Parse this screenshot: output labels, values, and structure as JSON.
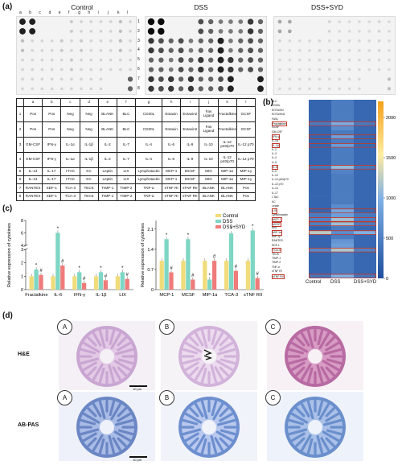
{
  "panel_labels": {
    "a": "(a)",
    "b": "(b)",
    "c": "(c)",
    "d": "(d)"
  },
  "arrays": {
    "titles": [
      "Control",
      "DSS",
      "DSS+SYD"
    ],
    "col_letters": [
      "a",
      "b",
      "c",
      "d",
      "e",
      "f",
      "g",
      "h",
      "i",
      "j",
      "k",
      "l"
    ],
    "row_numbers": [
      "1",
      "2",
      "3",
      "4",
      "5",
      "6",
      "7",
      "8"
    ]
  },
  "key_table": {
    "header": [
      "",
      "a",
      "b",
      "c",
      "d",
      "e",
      "f",
      "g",
      "h",
      "i",
      "j",
      "k",
      "l"
    ],
    "rows": [
      [
        "1",
        "Pos",
        "Pos",
        "Neg",
        "Neg",
        "BLANK",
        "BLC",
        "CD30L",
        "Eotaxin",
        "Eotaxin2",
        "Fas Ligand",
        "Fractalkine",
        "GCSF"
      ],
      [
        "2",
        "Pos",
        "Pos",
        "Neg",
        "Neg",
        "BLANK",
        "BLC",
        "CD30L",
        "Eotaxin",
        "Eotaxin2",
        "Fas Ligand",
        "Fractalkine",
        "GCSF"
      ],
      [
        "3",
        "GM-CSF",
        "IFN-γ",
        "IL-1α",
        "IL-1β",
        "IL-2",
        "IL-7",
        "IL-4",
        "IL-6",
        "IL-9",
        "IL-10",
        "IL-12 p40/p70",
        "IL-12 p70"
      ],
      [
        "4",
        "GM-CSF",
        "IFN-γ",
        "IL-1α",
        "IL-1β",
        "IL-2",
        "IL-7",
        "IL-4",
        "IL-6",
        "IL-9",
        "IL-10",
        "IL-12 p40/p70",
        "IL-12 p70"
      ],
      [
        "5",
        "IL-13",
        "IL-17",
        "I-TAC",
        "KC",
        "Leptin",
        "LIX",
        "Lymphotactin",
        "MCP-1",
        "MCSF",
        "MIG",
        "MIP-1α",
        "MIP-1γ"
      ],
      [
        "6",
        "IL-13",
        "IL-17",
        "I-TAC",
        "KC",
        "Leptin",
        "LIX",
        "Lymphotactin",
        "MCP-1",
        "MCSF",
        "MIG",
        "MIP-1α",
        "MIP-1γ"
      ],
      [
        "7",
        "RANTES",
        "SDF-1",
        "TCA-3",
        "TECK",
        "TIMP-1",
        "TIMP-2",
        "TNF-α",
        "sTNF RI",
        "sTNF RII",
        "BLANK",
        "BLANK",
        "Pos"
      ],
      [
        "8",
        "RANTES",
        "SDF-1",
        "TCA-3",
        "TECK",
        "TIMP-1",
        "TIMP-2",
        "TNF-α",
        "sTNF RI",
        "sTNF RII",
        "BLANK",
        "BLANK",
        "Pos"
      ]
    ]
  },
  "heatmap": {
    "row_labels": [
      "BLC",
      "CD30L",
      "EOTAXIN",
      "EOTAXIN2",
      "FASL",
      "Fractalkine",
      "GCSF",
      "GM-CSF",
      "IFN-γ",
      "IL-1α",
      "IL-1β",
      "IL-2",
      "IL-3",
      "IL-4",
      "IL-5",
      "IL-6",
      "IL-9",
      "IL-10",
      "IL-12 p40/p70",
      "IL-12 p70",
      "IL-13",
      "IL-17",
      "I-TAC",
      "KC",
      "Leptin",
      "LIX",
      "Lymphotactin",
      "MCP-1",
      "MCSF",
      "MIG",
      "MIP-1α",
      "MIP-1γ",
      "RANTES",
      "SDF-1",
      "TCA-3",
      "TECK",
      "TIMP-1",
      "TIMP-2",
      "TNF-α",
      "sTNF RI",
      "sTNF RII"
    ],
    "col_labels": [
      "Control",
      "DSS",
      "DSS+SYD"
    ],
    "boxed_rows": [
      "Fractalkine",
      "IFN-γ",
      "IL-1β",
      "IL-6",
      "LIX",
      "MCP-1",
      "MCSF",
      "MIP-1α",
      "TCA-3",
      "sTNF RII"
    ],
    "colorbar_ticks": [
      "2000",
      "1500",
      "1000",
      "500",
      "0"
    ],
    "colorbar_range": [
      0,
      2200
    ],
    "colors": {
      "low": "#1f4e9e",
      "mid": "#7fb0e6",
      "high": "#f4a11c"
    }
  },
  "chart_data": [
    {
      "type": "bar",
      "categories": [
        "Fractalkine",
        "IL-6",
        "IFN-γ",
        "IL-1β",
        "LIX"
      ],
      "series": [
        {
          "name": "Control",
          "values": [
            1.0,
            1.0,
            1.0,
            1.0,
            1.0
          ],
          "color": "#f0dc7a"
        },
        {
          "name": "DSS",
          "values": [
            1.5,
            6.0,
            1.3,
            1.3,
            1.3
          ],
          "color": "#7ed6c4"
        },
        {
          "name": "DSS+SYD",
          "values": [
            1.1,
            1.8,
            0.5,
            0.7,
            0.8
          ],
          "color": "#ef7b7b"
        }
      ],
      "ylabel": "Relative expression of cytokines",
      "yticks": [
        "0",
        "1",
        "2",
        "3",
        "4",
        "6",
        "8"
      ],
      "ylim": [
        0,
        8
      ],
      "axis_break": [
        3,
        4
      ],
      "annotations": {
        "DSS": "*",
        "DSS+SYD": "#"
      }
    },
    {
      "type": "bar",
      "categories": [
        "MCP-1",
        "MCSF",
        "MIP-1α",
        "TCA-3",
        "sTNF RII"
      ],
      "series": [
        {
          "name": "Control",
          "values": [
            1.0,
            1.0,
            1.0,
            1.0,
            1.0
          ],
          "color": "#f0dc7a"
        },
        {
          "name": "DSS",
          "values": [
            1.75,
            1.75,
            0.35,
            1.95,
            2.05
          ],
          "color": "#7ed6c4"
        },
        {
          "name": "DSS+SYD",
          "values": [
            0.6,
            0.35,
            1.0,
            0.65,
            0.4
          ],
          "color": "#ef7b7b"
        }
      ],
      "ylabel": "Relative expression of cytokines",
      "yticks": [
        "0",
        "0.7",
        "1.4",
        "2.1"
      ],
      "ylim": [
        0,
        2.4
      ],
      "legend": [
        "Control",
        "DSS",
        "DSS+SYD"
      ],
      "annotations": {
        "DSS": "*",
        "DSS+SYD": "#"
      }
    }
  ],
  "histology": {
    "row_labels": [
      "H&E",
      "AB-PAS"
    ],
    "letters": [
      "A",
      "B",
      "C"
    ],
    "scale_text": "10 μm"
  }
}
